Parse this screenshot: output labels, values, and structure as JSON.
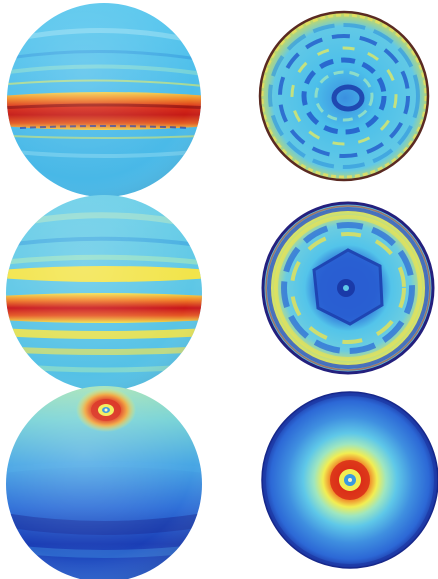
{
  "figure": {
    "layout": {
      "rows": 3,
      "columns": 2
    },
    "colormap": "jet",
    "colormap_stops": [
      "#102a9c",
      "#2a6fe0",
      "#45c6f0",
      "#9ee6c0",
      "#f2ee52",
      "#f29a2a",
      "#d92b18",
      "#8c0f0f"
    ],
    "panels": [
      {
        "row": 1,
        "view": "side",
        "pattern": "equatorial-red-band",
        "base_color": "#4fbfec",
        "band_colors": [
          "#f2ee52",
          "#d92b18",
          "#8c0f0f"
        ]
      },
      {
        "row": 1,
        "view": "pole",
        "pattern": "speckled-ripples",
        "base_color": "#4fbfec",
        "rim_color": "#7a3a2a"
      },
      {
        "row": 2,
        "view": "side",
        "pattern": "multiple-zonal-bands",
        "base_color": "#5fc7e6",
        "band_colors": [
          "#f2ee52",
          "#e2461f",
          "#b5131a"
        ]
      },
      {
        "row": 2,
        "view": "pole",
        "pattern": "hexagonal-polar-vortex",
        "base_color": "#4fbfec",
        "center_color": "#1f52c8",
        "rim_color": "#27208a"
      },
      {
        "row": 3,
        "view": "side",
        "pattern": "polar-hotspot-gradient",
        "base_color": "#1c4fc4",
        "hotspot_color": "#d92b18"
      },
      {
        "row": 3,
        "view": "pole",
        "pattern": "central-hotspot-rings",
        "base_color": "#3f8fe0",
        "hotspot_color": "#d92b18",
        "rim_color": "#1a2f9c"
      }
    ]
  }
}
